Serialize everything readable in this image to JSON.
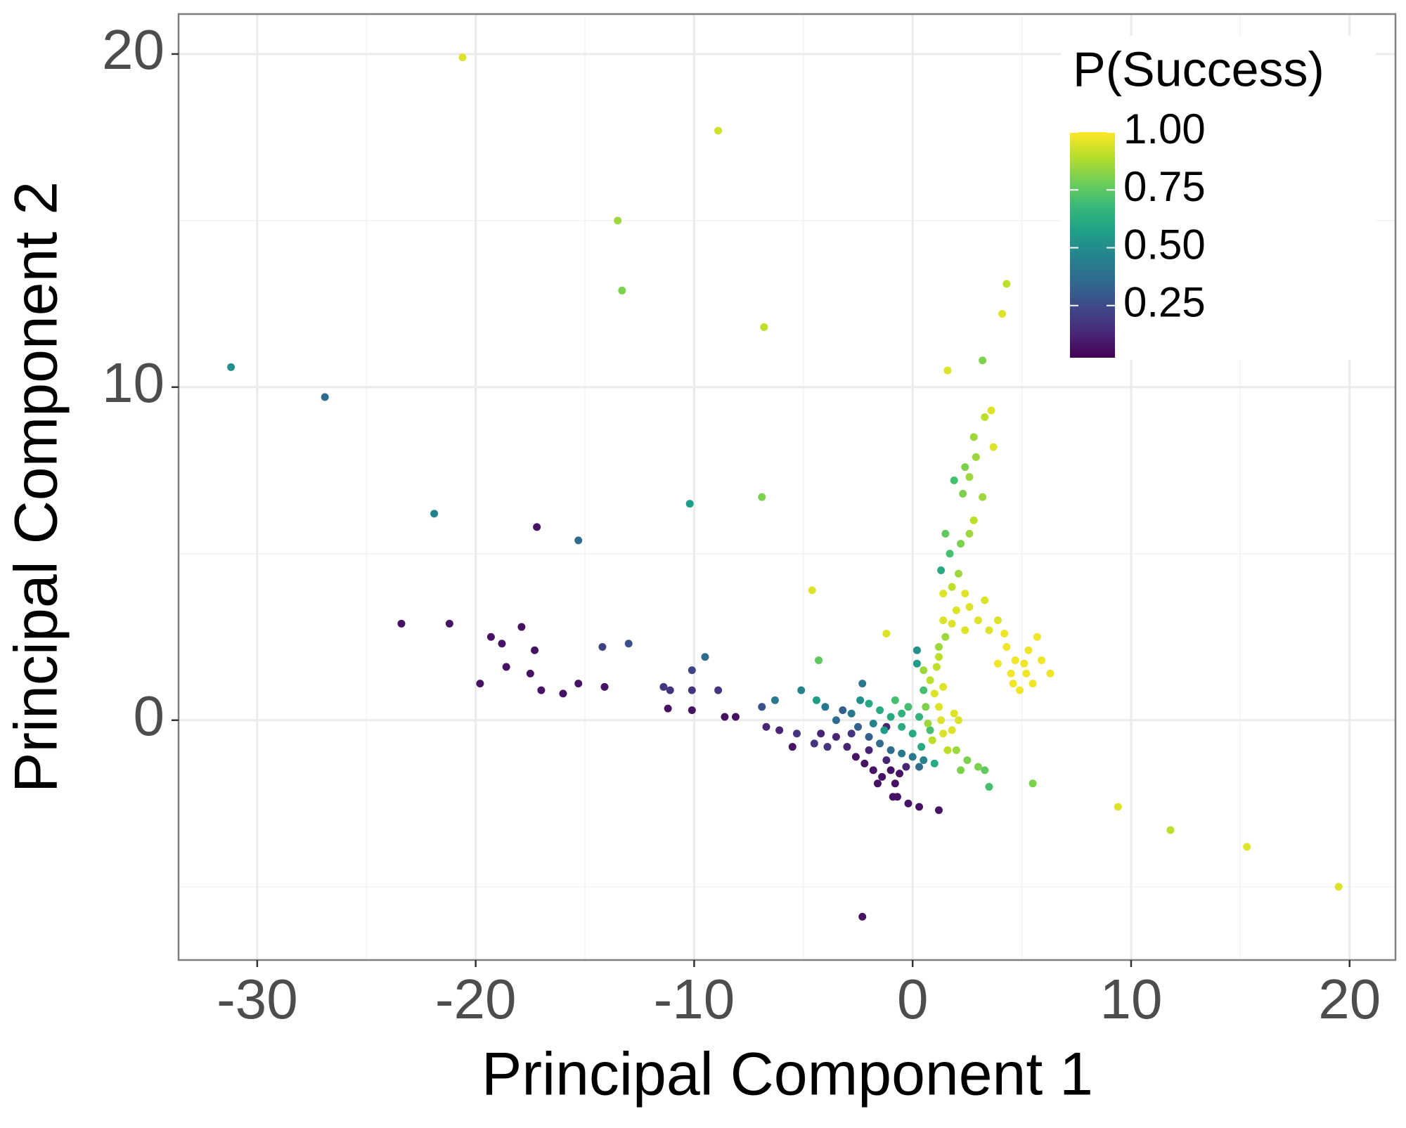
{
  "chart_data": {
    "type": "scatter",
    "xlabel": "Principal Component 1",
    "ylabel": "Principal Component 2",
    "legend_title": "P(Success)",
    "xlim": [
      -33.6,
      22.1
    ],
    "ylim": [
      -7.2,
      21.2
    ],
    "xticks": [
      -30,
      -20,
      -10,
      0,
      10,
      20
    ],
    "yticks": [
      0,
      10,
      20
    ],
    "x_minor_ticks": [
      -25,
      -15,
      -5,
      5,
      15
    ],
    "y_minor_ticks": [
      -5,
      5,
      15
    ],
    "grid": true,
    "colorbar": {
      "lim": [
        0,
        1
      ],
      "ticks": [
        {
          "value": 0.25,
          "label": "0.25"
        },
        {
          "value": 0.5,
          "label": "0.50"
        },
        {
          "value": 0.75,
          "label": "0.75"
        },
        {
          "value": 1,
          "label": "1.00"
        }
      ],
      "colors": [
        "#440154",
        "#482878",
        "#3e4989",
        "#31688e",
        "#26828e",
        "#1f9e89",
        "#35b779",
        "#6ece58",
        "#b5de2b",
        "#fde725"
      ]
    },
    "x": [
      -20.6,
      -8.9,
      -13.5,
      -13.3,
      -6.8,
      -31.2,
      -26.9,
      -21.9,
      -17.2,
      -15.3,
      -10.2,
      -6.9,
      -4.6,
      -23.4,
      -21.2,
      -19.3,
      -18.8,
      -17.9,
      -17.3,
      -18.6,
      -19.8,
      -17.5,
      -17.0,
      -16.0,
      -15.3,
      -14.1,
      -14.2,
      -13.0,
      -10.1,
      -9.5,
      -11.4,
      -11.1,
      -10.1,
      -8.9,
      -11.2,
      -10.1,
      -8.6,
      -8.1,
      -2.3,
      9.4,
      11.8,
      15.3,
      19.5,
      5.5,
      3.5,
      1.6,
      3.2,
      4.3,
      4.1,
      -1.2,
      -4.3,
      -5.1,
      -4.4,
      -6.3,
      -6.9,
      0.2,
      0.2,
      -2.3,
      3.6,
      3.3,
      2.8,
      3.7,
      2.9,
      2.4,
      2.6,
      1.9,
      2.3,
      3.2,
      2.8,
      2.6,
      1.5,
      2.2,
      1.7,
      1.3,
      2.1,
      1.8,
      2.4,
      1.4,
      2.6,
      2.0,
      3.0,
      3.5,
      3.9,
      1.8,
      1.4,
      2.4,
      1.2,
      3.3,
      4.7,
      5.1,
      4.5,
      5.3,
      4.3,
      5.5,
      4.9,
      5.7,
      3.9,
      6.3,
      4.6,
      5.2,
      4.2,
      5.9,
      -3.5,
      -3.0,
      -2.6,
      -2.2,
      -1.8,
      -1.4,
      -1.0,
      -0.6,
      -1.2,
      -2.0,
      -2.8,
      -0.8,
      -0.3,
      -1.6,
      -0.9,
      -0.7,
      -0.2,
      0.3,
      1.2,
      -4.2,
      -4.5,
      -5.5,
      -5.3,
      -6.7,
      -6.1,
      -3.9,
      -1.2,
      -2.5,
      -2.0,
      -1.5,
      -1.0,
      -0.5,
      0,
      -3.2,
      -2.4,
      -3.5,
      -2.8,
      -4.0,
      -1.8,
      0.3,
      0.5,
      -1.5,
      -1.0,
      -0.5,
      0,
      0.4,
      -0.8,
      -0.2,
      0.3,
      0.8,
      -1.3,
      0.5,
      -2.0,
      -0.5,
      1.0,
      0.5,
      0.8,
      1.0,
      1.2,
      1.3,
      1.4,
      0.9,
      0.6,
      1.1,
      1.4,
      0.7,
      1.6,
      2.0,
      2.5,
      3.0,
      2.2,
      3.3,
      1.8,
      1.9,
      1.2,
      1.5,
      2.1
    ],
    "y": [
      19.9,
      17.7,
      15.0,
      12.9,
      11.8,
      10.6,
      9.7,
      6.2,
      5.8,
      5.4,
      6.5,
      6.7,
      3.9,
      2.9,
      2.9,
      2.5,
      2.3,
      2.8,
      2.1,
      1.6,
      1.1,
      1.4,
      0.9,
      0.8,
      1.1,
      1.0,
      2.2,
      2.3,
      1.5,
      1.9,
      1.0,
      0.9,
      0.9,
      0.9,
      0.35,
      0.3,
      0.1,
      0.1,
      -5.9,
      -2.6,
      -3.3,
      -3.8,
      -5.0,
      -1.9,
      -2.0,
      10.5,
      10.8,
      13.1,
      12.2,
      2.6,
      1.8,
      0.9,
      0.6,
      0.6,
      0.4,
      2.1,
      1.7,
      1.1,
      9.3,
      9.1,
      8.5,
      8.2,
      7.9,
      7.6,
      7.3,
      7.2,
      6.8,
      6.7,
      6.0,
      5.6,
      5.6,
      5.3,
      5.0,
      4.5,
      4.4,
      4.0,
      3.8,
      3.8,
      3.4,
      3.3,
      3.0,
      2.7,
      3.0,
      2.9,
      3.0,
      2.7,
      2.2,
      3.6,
      1.8,
      1.7,
      1.4,
      2.1,
      2.2,
      1.1,
      0.9,
      2.5,
      1.7,
      1.4,
      1.1,
      1.4,
      2.6,
      1.8,
      -0.5,
      -0.8,
      -1.1,
      -1.3,
      -1.5,
      -1.7,
      -1.5,
      -1.6,
      -1.2,
      -0.9,
      -0.4,
      -1.9,
      -1.4,
      -1.9,
      -2.3,
      -2.3,
      -2.5,
      -2.6,
      -2.7,
      -0.4,
      -0.7,
      -0.8,
      -0.4,
      -0.2,
      -0.3,
      -0.8,
      -0.2,
      -0.2,
      -0.5,
      -0.7,
      -0.9,
      -1.0,
      -1.1,
      0.3,
      0.6,
      0,
      0.2,
      0.4,
      -0.1,
      -1.4,
      -1.2,
      0.3,
      0.1,
      -0.2,
      -0.4,
      -0.8,
      0.6,
      0.4,
      0.1,
      -0.3,
      -0.3,
      0.9,
      0.5,
      0.2,
      -1.3,
      1.5,
      1.2,
      0.8,
      0.4,
      0,
      -0.4,
      -0.6,
      0.4,
      1.6,
      1.0,
      -0.1,
      -0.9,
      -0.9,
      -1.2,
      -1.4,
      -1.5,
      -1.5,
      -0.3,
      0.2,
      1.9,
      2.5,
      0.0
    ],
    "color_values": [
      0.95,
      0.93,
      0.85,
      0.8,
      0.9,
      0.5,
      0.35,
      0.45,
      0.05,
      0.35,
      0.55,
      0.8,
      0.95,
      0.05,
      0.05,
      0.05,
      0.05,
      0.05,
      0.05,
      0.05,
      0.05,
      0.05,
      0.05,
      0.05,
      0.05,
      0.05,
      0.2,
      0.25,
      0.2,
      0.35,
      0.15,
      0.15,
      0.15,
      0.15,
      0.05,
      0.05,
      0.05,
      0.05,
      0.05,
      0.95,
      0.9,
      0.95,
      0.95,
      0.8,
      0.7,
      0.95,
      0.8,
      0.9,
      0.95,
      0.95,
      0.75,
      0.45,
      0.55,
      0.4,
      0.25,
      0.5,
      0.55,
      0.4,
      0.95,
      0.9,
      0.85,
      0.95,
      0.85,
      0.8,
      0.85,
      0.7,
      0.8,
      0.85,
      0.9,
      0.85,
      0.75,
      0.8,
      0.7,
      0.6,
      0.85,
      0.9,
      0.95,
      0.95,
      0.95,
      0.95,
      0.95,
      0.95,
      0.95,
      0.95,
      0.95,
      0.95,
      0.85,
      0.95,
      0.98,
      0.98,
      0.98,
      0.98,
      0.98,
      0.98,
      0.98,
      0.98,
      0.98,
      0.98,
      0.98,
      0.98,
      0.98,
      0.98,
      0.1,
      0.1,
      0.05,
      0.05,
      0.05,
      0.05,
      0.05,
      0.05,
      0.1,
      0.1,
      0.15,
      0.05,
      0.1,
      0.05,
      0.05,
      0.05,
      0.05,
      0.05,
      0.05,
      0.1,
      0.15,
      0.05,
      0.15,
      0.1,
      0.1,
      0.15,
      0.1,
      0.3,
      0.3,
      0.35,
      0.35,
      0.4,
      0.4,
      0.3,
      0.5,
      0.35,
      0.4,
      0.4,
      0.45,
      0.35,
      0.45,
      0.6,
      0.6,
      0.6,
      0.6,
      0.6,
      0.7,
      0.7,
      0.65,
      0.7,
      0.55,
      0.7,
      0.6,
      0.65,
      0.6,
      0.85,
      0.9,
      0.95,
      0.95,
      0.95,
      0.95,
      0.9,
      0.8,
      0.9,
      0.95,
      0.85,
      0.9,
      0.85,
      0.8,
      0.8,
      0.8,
      0.75,
      0.95,
      0.95,
      0.9,
      0.85,
      0.95
    ]
  }
}
